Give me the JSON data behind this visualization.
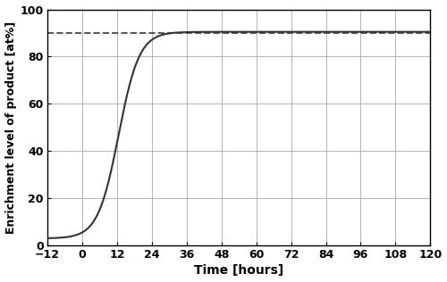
{
  "xlabel": "Time [hours]",
  "ylabel": "Enrichment level of product [at%]",
  "xlim": [
    -12,
    120
  ],
  "ylim": [
    0,
    100
  ],
  "xticks": [
    -12,
    0,
    12,
    24,
    36,
    48,
    60,
    72,
    84,
    96,
    108,
    120
  ],
  "yticks": [
    0,
    20,
    40,
    60,
    80,
    100
  ],
  "target_enrichment": 90,
  "dashed_line_color": "#555555",
  "curve_color": "#333333",
  "background_color": "#ffffff",
  "grid_color": "#aaaaaa",
  "sigmoid_midpoint": 12.5,
  "sigmoid_steepness": 0.28,
  "asymptote": 90.5,
  "flat_value": 3.0
}
